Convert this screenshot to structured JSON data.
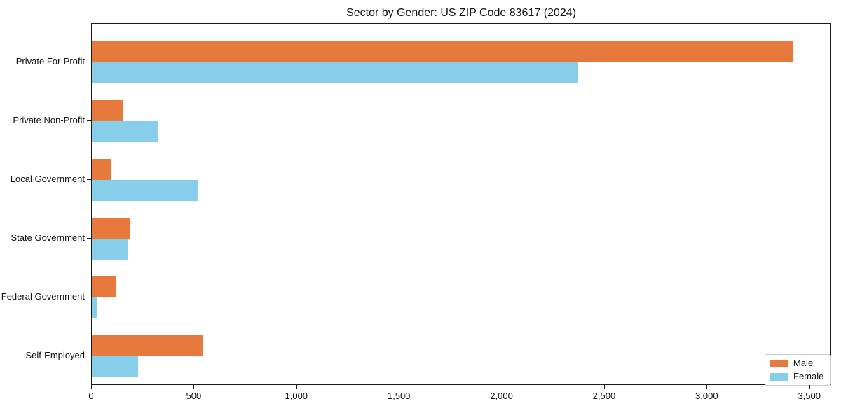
{
  "chart_data": {
    "type": "bar",
    "orientation": "horizontal",
    "title": "Sector by Gender: US ZIP Code 83617 (2024)",
    "categories": [
      "Private For-Profit",
      "Private Non-Profit",
      "Local Government",
      "State Government",
      "Federal Government",
      "Self-Employed"
    ],
    "series": [
      {
        "name": "Male",
        "color": "#E8793C",
        "values": [
          3420,
          150,
          95,
          185,
          120,
          540
        ]
      },
      {
        "name": "Female",
        "color": "#87CEEB",
        "values": [
          2370,
          320,
          515,
          175,
          25,
          225
        ]
      }
    ],
    "xlabel": "",
    "ylabel": "",
    "xlim": [
      0,
      3600
    ],
    "x_ticks": [
      0,
      500,
      1000,
      1500,
      2000,
      2500,
      3000,
      3500
    ],
    "x_tick_labels": [
      "0",
      "500",
      "1,000",
      "1,500",
      "2,000",
      "2,500",
      "3,000",
      "3,500"
    ],
    "grid": false,
    "legend_position": "lower right",
    "spine_color": "#1a1a1a",
    "background_color": "#ffffff"
  }
}
